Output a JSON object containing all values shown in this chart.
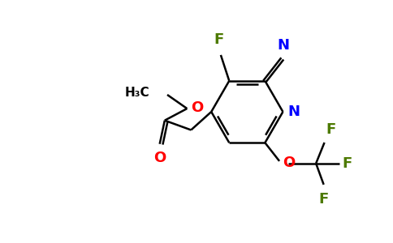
{
  "bg_color": "#ffffff",
  "bond_color": "#000000",
  "N_color": "#0000ff",
  "F_color": "#4d7a00",
  "O_color": "#ff0000",
  "lw": 1.8,
  "figsize": [
    4.84,
    3.0
  ],
  "dpi": 100,
  "xlim": [
    0,
    10
  ],
  "ylim": [
    0,
    6.2
  ],
  "fs": 13,
  "fs_small": 11
}
